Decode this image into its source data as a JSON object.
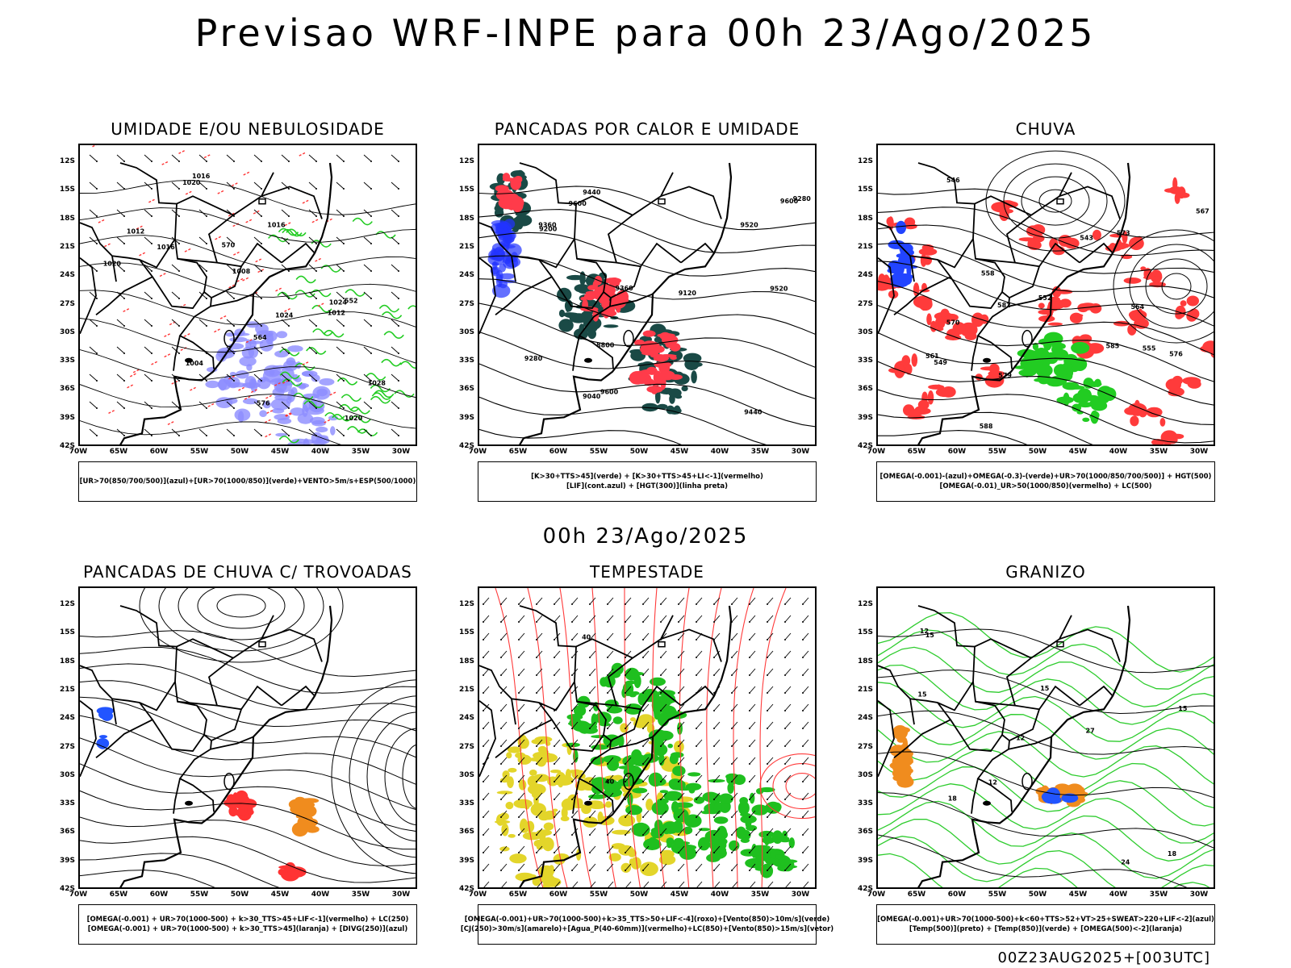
{
  "header": {
    "title": "Previsao WRF-INPE  para 00h 23/Ago/2025"
  },
  "mid_time": "00h 23/Ago/2025",
  "footer_stamp": "00Z23AUG2025+[003UTC]",
  "axes": {
    "lat": [
      "12S",
      "15S",
      "18S",
      "21S",
      "24S",
      "27S",
      "30S",
      "33S",
      "36S",
      "39S",
      "42S"
    ],
    "lon": [
      "70W",
      "65W",
      "60W",
      "55W",
      "50W",
      "45W",
      "40W",
      "35W",
      "30W"
    ]
  },
  "panels": [
    {
      "title": "UMIDADE E/OU NEBULOSIDADE",
      "legend": [
        "[UR>70(850/700/500)](azul)+[UR>70(1000/850)](verde)+VENTO>5m/s+ESP(500/1000)"
      ],
      "contour_labels": [
        "1016",
        "1012",
        "1008",
        "1020",
        "1004",
        "1016",
        "1020",
        "1024",
        "1028",
        "1012",
        "1016",
        "1024",
        "1020",
        "552",
        "564",
        "576",
        "570"
      ],
      "colors": {
        "blue": "#8c8cff",
        "green": "#22cc22",
        "red": "#ff3333"
      }
    },
    {
      "title": "PANCADAS POR CALOR E UMIDADE",
      "legend": [
        "[K>30+TTS>45](verde) + [K>30+TTS>45+LI<-1](vermelho)",
        "[LIF](cont.azul) + [HGT(300)](linha preta)"
      ],
      "contour_labels": [
        "9600",
        "9520",
        "9360",
        "9440",
        "9280",
        "9200",
        "9120",
        "9040",
        "8800",
        "9600",
        "9520",
        "9440",
        "9360",
        "9280",
        "9600"
      ],
      "colors": {
        "green": "#1a4a46",
        "red": "#ff3b4a",
        "blue": "#2233ff"
      }
    },
    {
      "title": "CHUVA",
      "legend": [
        "[OMEGA(-0.001)-(azul)+OMEGA(-0.3)-(verde)+UR>70(1000/850/700/500)] + HGT(500)",
        "[OMEGA(-0.01)_UR>50(1000/850)(vermelho) + LC(500)"
      ],
      "contour_labels": [
        "588",
        "585",
        "582",
        "579",
        "576",
        "573",
        "570",
        "567",
        "564",
        "561",
        "558",
        "555",
        "552",
        "549",
        "546",
        "543"
      ],
      "colors": {
        "red": "#ff3b3b",
        "green": "#22cc22",
        "blue": "#2244ff"
      }
    },
    {
      "title": "PANCADAS DE CHUVA C/ TROVOADAS",
      "legend": [
        "[OMEGA(-0.001) + UR>70(1000-500) + k>30_TTS>45+LIF<-1](vermelho) + LC(250)",
        "[OMEGA(-0.001) + UR>70(1000-500) + k>30_TTS>45](laranja) + [DIVG(250)](azul)"
      ],
      "contour_labels": [],
      "colors": {
        "red": "#ff3333",
        "orange": "#f08c1e",
        "blue": "#2255ff"
      }
    },
    {
      "title": "TEMPESTADE",
      "legend": [
        "[OMEGA(-0.001)+UR>70(1000-500)+k>35_TTS>50+LIF<-4](roxo)+[Vento(850)>10m/s](verde)",
        "[CJ(250)>30m/s](amarelo)+[Agua_P(40-60mm)](vermelho)+LC(850)+[Vento(850)>15m/s](vetor)"
      ],
      "contour_labels": [
        "40",
        "40"
      ],
      "colors": {
        "green": "#1fbf1f",
        "yellow": "#e3d52a",
        "red": "#ff3b3b"
      }
    },
    {
      "title": "GRANIZO",
      "legend": [
        "[OMEGA(-0.001)+UR>70(1000-500)+k<60+TTS>52+VT>25+SWEAT>220+LIF<-2](azul)",
        "[Temp(500)](preto) + [Temp(850)](verde) + [OMEGA(500)<-2](laranja)"
      ],
      "contour_labels": [
        "12",
        "15",
        "18",
        "15",
        "12",
        "15",
        "18",
        "12",
        "15",
        "27",
        "24"
      ],
      "colors": {
        "green": "#2ecc2e",
        "orange": "#f08c1e",
        "blue": "#2255ff"
      }
    }
  ]
}
